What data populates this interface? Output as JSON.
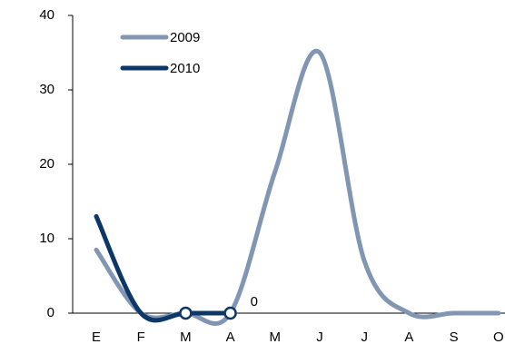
{
  "chart_data": {
    "type": "line",
    "categories": [
      "E",
      "F",
      "M",
      "A",
      "M",
      "J",
      "J",
      "A",
      "S",
      "O"
    ],
    "series": [
      {
        "name": "2009",
        "color": "#8196b3",
        "values": [
          8.5,
          0,
          0,
          0,
          19,
          35,
          7,
          0,
          0,
          0
        ]
      },
      {
        "name": "2010",
        "color": "#0d3766",
        "values": [
          13,
          0,
          0,
          0,
          null,
          null,
          null,
          null,
          null,
          null
        ],
        "markers": [
          2,
          3
        ]
      }
    ],
    "ylim": [
      0,
      40
    ],
    "yticks": [
      0,
      10,
      20,
      30,
      40
    ],
    "grid": false,
    "legend": "top-left"
  }
}
